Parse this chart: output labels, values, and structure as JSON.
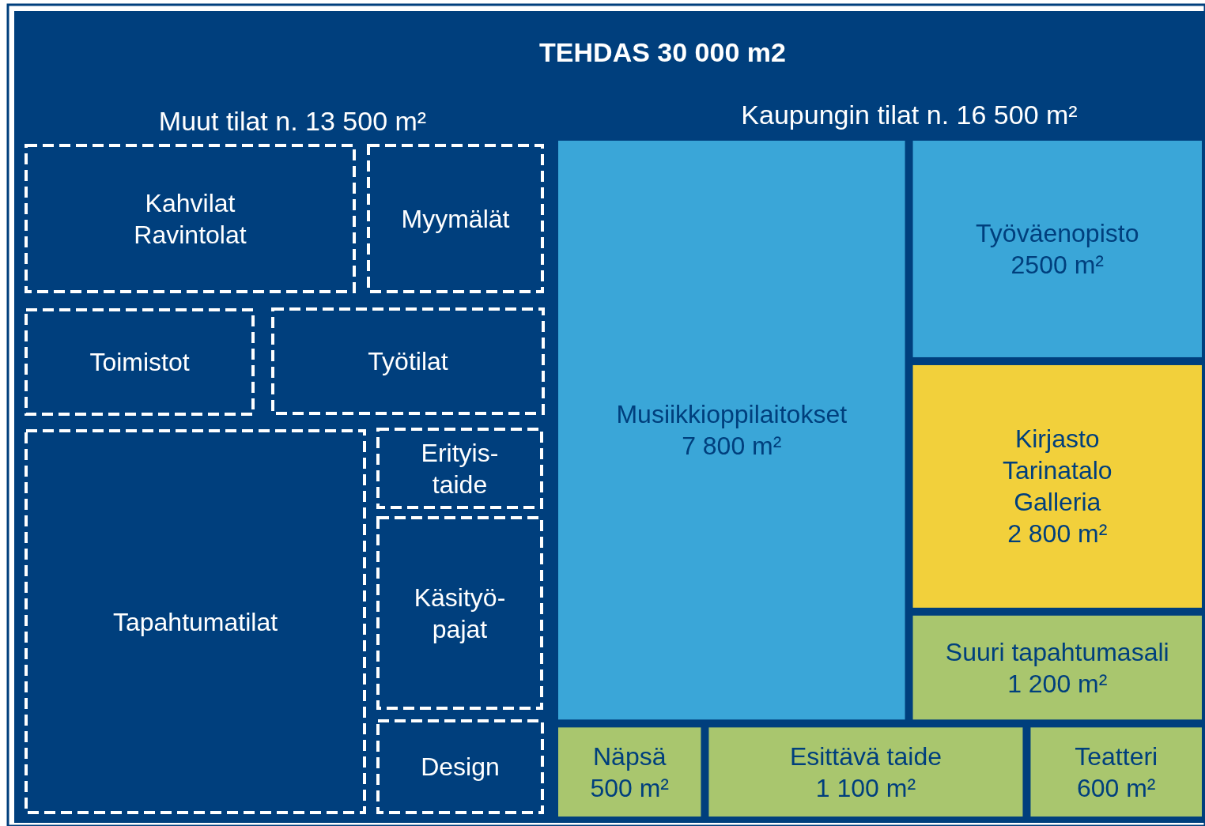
{
  "chart_data": {
    "type": "other",
    "title": "TEHDAS 30 000 m2",
    "annotations": [
      "Muut tilat n. 13 500 m²",
      "Kaupungin tilat n. 16 500 m²"
    ],
    "categories": [
      "Kahvilat\nRavintolat",
      "Myymälät",
      "Toimistot",
      "Työtilat",
      "Tapahtumatilat",
      "Erityis-\ntaide",
      "Käsityö-\npajat",
      "Design",
      "Musiikkioppilaitokset",
      "Työväenopisto",
      "Kirjasto\nTarinatalo\nGalleria",
      "Suuri tapahtumasali",
      "Näpsä",
      "Esittävä taide",
      "Teatteri"
    ],
    "values": [
      null,
      null,
      null,
      null,
      null,
      null,
      null,
      null,
      7800,
      2500,
      2800,
      1200,
      500,
      1100,
      600
    ],
    "value_labels": [
      null,
      null,
      null,
      null,
      null,
      null,
      null,
      null,
      "7 800 m²",
      "2500 m²",
      "2 800 m²",
      "1 200 m²",
      "500 m²",
      "1 100 m²",
      "600 m²"
    ],
    "colors": [
      "#003f7d",
      "#003f7d",
      "#003f7d",
      "#003f7d",
      "#003f7d",
      "#003f7d",
      "#003f7d",
      "#003f7d",
      "#3aa6d8",
      "#3aa6d8",
      "#f2d03b",
      "#a9c66e",
      "#a9c66e",
      "#a9c66e",
      "#a9c66e"
    ]
  }
}
